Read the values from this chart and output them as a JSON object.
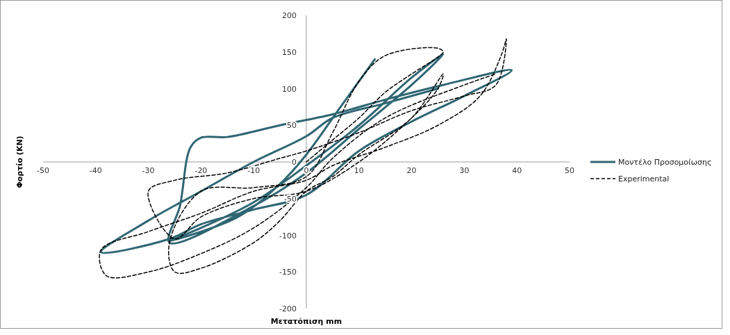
{
  "chart_data": {
    "type": "line",
    "xlabel": "Μετατόπιση mm",
    "ylabel": "Φορτίο (KN)",
    "xlim": [
      -50,
      50
    ],
    "ylim": [
      -200,
      200
    ],
    "xticks": [
      -50,
      -40,
      -30,
      -20,
      -10,
      0,
      10,
      20,
      30,
      40,
      50
    ],
    "yticks": [
      -200,
      -150,
      -100,
      -50,
      0,
      50,
      100,
      150,
      200
    ],
    "legend": "right",
    "grid": false,
    "series": [
      {
        "name": "Μοντέλο Προσομοίωσης",
        "color": "#2f6673",
        "line_style": "solid",
        "x": [
          13,
          6,
          0,
          -5,
          -13,
          -26,
          -20,
          -10,
          0,
          10,
          20,
          26,
          20,
          10,
          0,
          -10,
          -26,
          -24,
          -22,
          -20,
          -15,
          -5,
          5,
          15,
          26,
          39,
          30,
          20,
          10,
          0,
          -10,
          -20,
          -26,
          -39,
          -30,
          -20,
          -10,
          0,
          5,
          15,
          25
        ],
        "values": [
          140,
          70,
          10,
          -30,
          -75,
          -108,
          -90,
          -55,
          -5,
          50,
          115,
          147,
          105,
          45,
          -15,
          -60,
          -110,
          -60,
          20,
          33,
          34,
          50,
          65,
          85,
          105,
          125,
          90,
          55,
          15,
          -45,
          -65,
          -85,
          -105,
          -123,
          -80,
          -40,
          0,
          35,
          60,
          80,
          100
        ]
      },
      {
        "name": "Experimental",
        "color": "#000000",
        "line_style": "dashed",
        "x": [
          0,
          5,
          10,
          15,
          20,
          25,
          26,
          25,
          15,
          10,
          5,
          0,
          -10,
          -20,
          -26,
          -25,
          -20,
          -10,
          -5,
          0,
          5,
          10,
          20,
          26,
          25,
          20,
          10,
          0,
          -10,
          -20,
          -25,
          -30,
          -25,
          -15,
          -5,
          0,
          10,
          20,
          30,
          36,
          38,
          37,
          33,
          25,
          15,
          5,
          0,
          -10,
          -20,
          -30,
          -39,
          -38,
          -30,
          -20,
          -10,
          0,
          5,
          15,
          30,
          36
        ],
        "values": [
          0,
          30,
          60,
          95,
          120,
          143,
          150,
          155,
          145,
          110,
          40,
          -20,
          -35,
          -40,
          -110,
          -150,
          -145,
          -110,
          -80,
          -40,
          -20,
          10,
          60,
          120,
          100,
          60,
          0,
          -40,
          -50,
          -75,
          -105,
          -40,
          -25,
          -15,
          5,
          15,
          40,
          70,
          90,
          105,
          168,
          145,
          90,
          50,
          20,
          -5,
          -25,
          -40,
          -70,
          -95,
          -120,
          -155,
          -150,
          -125,
          -90,
          -35,
          5,
          60,
          105,
          120
        ]
      }
    ]
  }
}
